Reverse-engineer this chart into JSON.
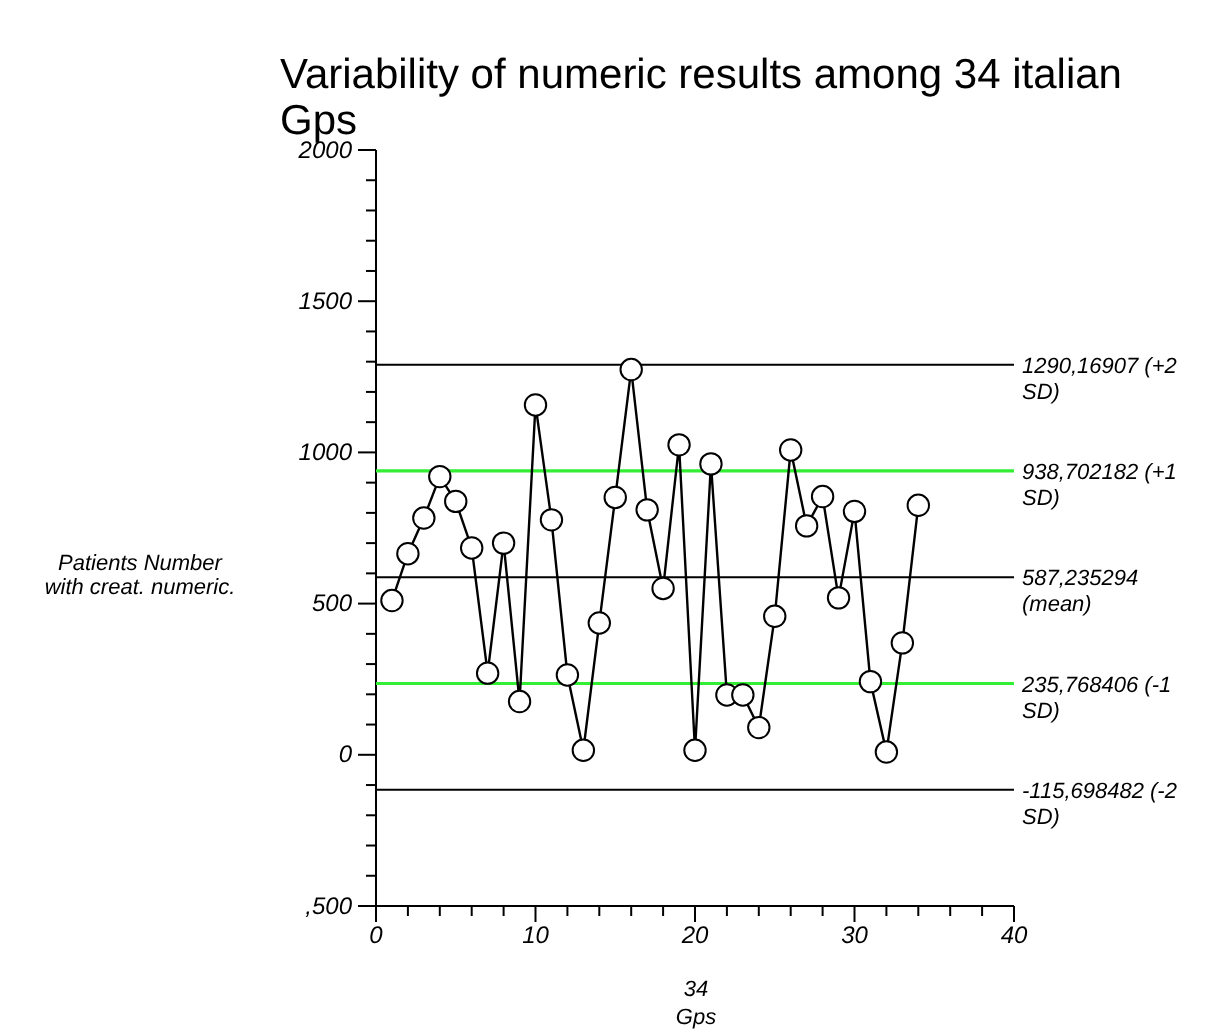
{
  "chart_data": {
    "type": "line",
    "title": "Variability of numeric results among 34 italian Gps",
    "xlabel": "34 Gps",
    "ylabel": "Patients Number  with creat. numeric.",
    "x": [
      1,
      2,
      3,
      4,
      5,
      6,
      7,
      8,
      9,
      10,
      11,
      12,
      13,
      14,
      15,
      16,
      17,
      18,
      19,
      20,
      21,
      22,
      23,
      24,
      25,
      26,
      27,
      28,
      29,
      30,
      31,
      32,
      33,
      34
    ],
    "series": [
      {
        "color": "#000000",
        "values": [
          510,
          665,
          783,
          920,
          838,
          684,
          270,
          700,
          176,
          1157,
          777,
          264,
          15,
          436,
          851,
          1274,
          810,
          550,
          1025,
          15,
          962,
          198,
          198,
          90,
          458,
          1008,
          757,
          854,
          519,
          805,
          242,
          9,
          370,
          825
        ]
      }
    ],
    "marker": "circle",
    "line_style": "solid",
    "grid": false,
    "xlim": [
      0,
      40
    ],
    "xticks": [
      0,
      {
        "value": 2,
        "label": null
      },
      {
        "value": 4,
        "label": null
      },
      {
        "value": 6,
        "label": null
      },
      {
        "value": 8,
        "label": null
      },
      10,
      {
        "value": 12,
        "label": null
      },
      {
        "value": 14,
        "label": null
      },
      {
        "value": 16,
        "label": null
      },
      {
        "value": 18,
        "label": null
      },
      20,
      {
        "value": 22,
        "label": null
      },
      {
        "value": 24,
        "label": null
      },
      {
        "value": 26,
        "label": null
      },
      {
        "value": 28,
        "label": null
      },
      30,
      {
        "value": 32,
        "label": null
      },
      {
        "value": 34,
        "label": null
      },
      {
        "value": 36,
        "label": null
      },
      {
        "value": 38,
        "label": null
      },
      40
    ],
    "ylim": [
      -500,
      2000
    ],
    "yticks": [
      {
        "value": -500,
        "label": ",500"
      },
      {
        "value": -400,
        "label": null
      },
      {
        "value": -300,
        "label": null
      },
      {
        "value": -200,
        "label": null
      },
      {
        "value": -100,
        "label": null
      },
      0,
      {
        "value": 100,
        "label": null
      },
      {
        "value": 200,
        "label": null
      },
      {
        "value": 300,
        "label": null
      },
      {
        "value": 400,
        "label": null
      },
      500,
      {
        "value": 600,
        "label": null
      },
      {
        "value": 700,
        "label": null
      },
      {
        "value": 800,
        "label": null
      },
      {
        "value": 900,
        "label": null
      },
      1000,
      {
        "value": 1100,
        "label": null
      },
      {
        "value": 1200,
        "label": null
      },
      {
        "value": 1300,
        "label": null
      },
      {
        "value": 1400,
        "label": null
      },
      1500,
      {
        "value": 1600,
        "label": null
      },
      {
        "value": 1700,
        "label": null
      },
      {
        "value": 1800,
        "label": null
      },
      {
        "value": 1900,
        "label": null
      },
      2000
    ],
    "ref_lines": [
      {
        "axis": "y",
        "value": 1290.16907,
        "label": "1290,16907 (+2 SD)",
        "color": "#000000"
      },
      {
        "axis": "y",
        "value": 938.702182,
        "label": "938,702182 (+1 SD)",
        "color": "#33ee33"
      },
      {
        "axis": "y",
        "value": 587.235294,
        "label": "587,235294 (mean)",
        "color": "#000000"
      },
      {
        "axis": "y",
        "value": 235.768406,
        "label": "235,768406 (-1 SD)",
        "color": "#33ee33"
      },
      {
        "axis": "y",
        "value": -115.698482,
        "label": "-115,698482 (-2 SD)",
        "color": "#000000"
      }
    ]
  }
}
